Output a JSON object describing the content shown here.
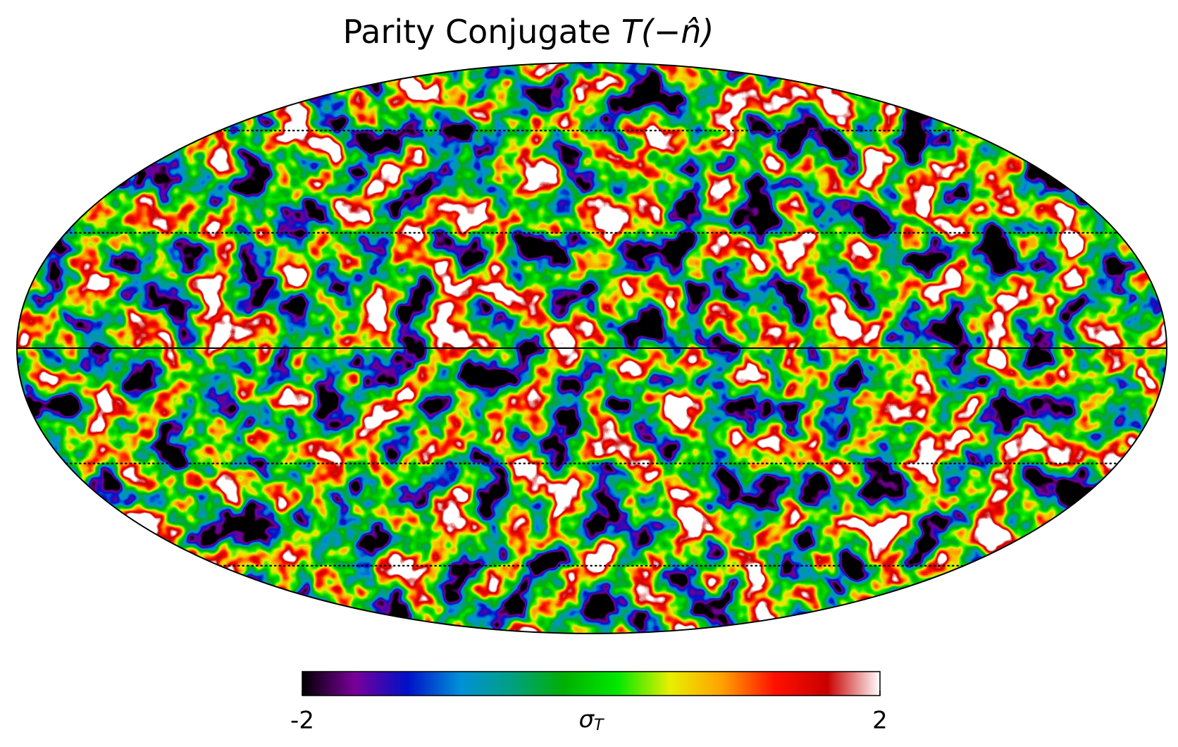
{
  "chart_data": {
    "type": "map",
    "title": [
      "Parity Conjugate",
      "T(−n̂)"
    ],
    "colorbar": {
      "lim": [
        -2,
        2
      ],
      "ticks": [
        -2,
        2
      ],
      "label": {
        "symbol": "σ",
        "subscript": "T"
      },
      "colors": [
        "#000000",
        "#7a0099",
        "#0010c8",
        "#0090d8",
        "#00a080",
        "#00b000",
        "#00e800",
        "#e8f000",
        "#ffa000",
        "#ff1000",
        "#c80000",
        "#ffffff"
      ]
    },
    "graticule": true
  }
}
